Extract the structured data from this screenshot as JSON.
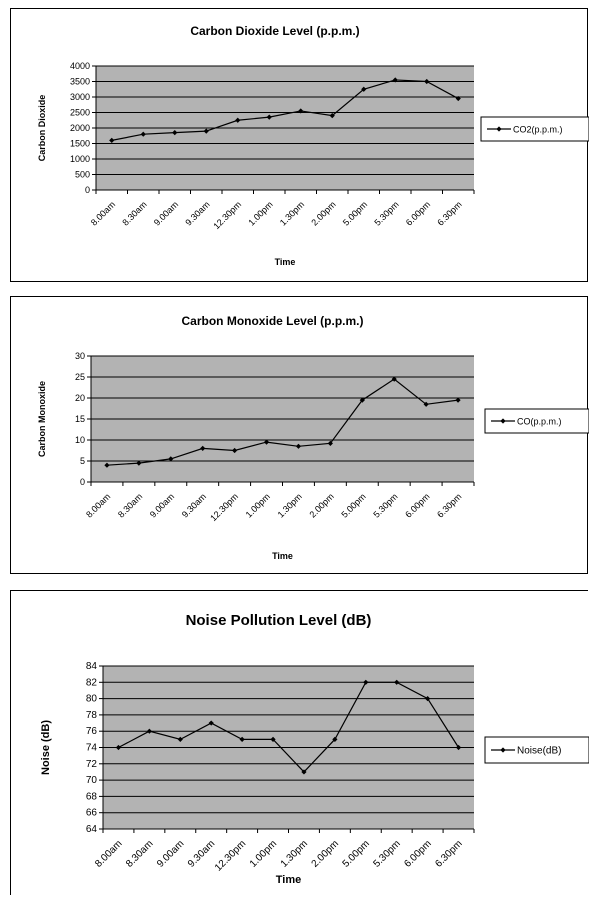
{
  "chart_data": [
    {
      "type": "line",
      "title": "Carbon Dioxide Level (p.p.m.)",
      "xlabel": "Time",
      "ylabel": "Carbon Dioxide",
      "ylim": [
        0,
        4000
      ],
      "ytick_step": 500,
      "grid": true,
      "legend_placement": "right",
      "categories": [
        "8.00am",
        "8.30am",
        "9.00am",
        "9.30am",
        "12.30pm",
        "1.00pm",
        "1.30pm",
        "2.00pm",
        "5.00pm",
        "5.30pm",
        "6.00pm",
        "6.30pm"
      ],
      "series": [
        {
          "name": "CO2(p.p.m.)",
          "values": [
            1600,
            1800,
            1850,
            1900,
            2250,
            2350,
            2550,
            2400,
            3250,
            3550,
            3500,
            2950
          ]
        }
      ]
    },
    {
      "type": "line",
      "title": "Carbon Monoxide Level (p.p.m.)",
      "xlabel": "Time",
      "ylabel": "Carbon Monoxide",
      "ylim": [
        0,
        30
      ],
      "ytick_step": 5,
      "grid": true,
      "legend_placement": "right",
      "categories": [
        "8.00am",
        "8.30am",
        "9.00am",
        "9.30am",
        "12.30pm",
        "1.00pm",
        "1.30pm",
        "2.00pm",
        "5.00pm",
        "5.30pm",
        "6.00pm",
        "6.30pm"
      ],
      "series": [
        {
          "name": "CO(p.p.m.)",
          "values": [
            4,
            4.5,
            5.5,
            8,
            7.5,
            9.5,
            8.5,
            9.2,
            19.5,
            24.5,
            18.5,
            19.5
          ]
        }
      ]
    },
    {
      "type": "line",
      "title": "Noise Pollution Level (dB)",
      "xlabel": "Time",
      "ylabel": "Noise (dB)",
      "ylim": [
        64,
        84
      ],
      "ytick_step": 2,
      "grid": true,
      "legend_placement": "right",
      "categories": [
        "8.00am",
        "8.30am",
        "9.00am",
        "9.30am",
        "12.30pm",
        "1.00pm",
        "1.30pm",
        "2.00pm",
        "5.00pm",
        "5.30pm",
        "6.00pm",
        "6.30pm"
      ],
      "series": [
        {
          "name": "Noise(dB)",
          "values": [
            74,
            76,
            75,
            77,
            75,
            75,
            71,
            75,
            82,
            82,
            80,
            74
          ]
        }
      ]
    }
  ],
  "colors": {
    "plot_background": "#b3b3b3",
    "grid_line": "#000000",
    "series_line": "#000000"
  }
}
